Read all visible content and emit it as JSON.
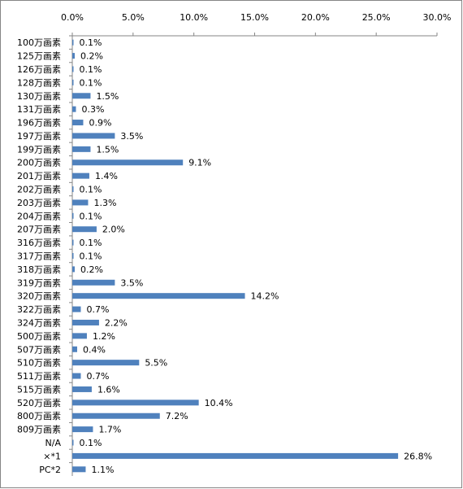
{
  "chart_data": {
    "type": "bar",
    "orientation": "horizontal",
    "color": "#4f81bd",
    "categories": [
      "100万画素",
      "125万画素",
      "126万画素",
      "128万画素",
      "130万画素",
      "131万画素",
      "196万画素",
      "197万画素",
      "199万画素",
      "200万画素",
      "201万画素",
      "202万画素",
      "203万画素",
      "204万画素",
      "207万画素",
      "316万画素",
      "317万画素",
      "318万画素",
      "319万画素",
      "320万画素",
      "322万画素",
      "324万画素",
      "500万画素",
      "507万画素",
      "510万画素",
      "511万画素",
      "515万画素",
      "520万画素",
      "800万画素",
      "809万画素",
      "N/A",
      "×*1",
      "PC*2"
    ],
    "values": [
      0.1,
      0.2,
      0.1,
      0.1,
      1.5,
      0.3,
      0.9,
      3.5,
      1.5,
      9.1,
      1.4,
      0.1,
      1.3,
      0.1,
      2.0,
      0.1,
      0.1,
      0.2,
      3.5,
      14.2,
      0.7,
      2.2,
      1.2,
      0.4,
      5.5,
      0.7,
      1.6,
      10.4,
      7.2,
      1.7,
      0.1,
      26.8,
      1.1
    ],
    "value_labels": [
      "0.1%",
      "0.2%",
      "0.1%",
      "0.1%",
      "1.5%",
      "0.3%",
      "0.9%",
      "3.5%",
      "1.5%",
      "9.1%",
      "1.4%",
      "0.1%",
      "1.3%",
      "0.1%",
      "2.0%",
      "0.1%",
      "0.1%",
      "0.2%",
      "3.5%",
      "14.2%",
      "0.7%",
      "2.2%",
      "1.2%",
      "0.4%",
      "5.5%",
      "0.7%",
      "1.6%",
      "10.4%",
      "7.2%",
      "1.7%",
      "0.1%",
      "26.8%",
      "1.1%"
    ],
    "xlim": [
      0,
      30
    ],
    "xticks": [
      {
        "value": 0,
        "label": "0.0%"
      },
      {
        "value": 5,
        "label": "5.0%"
      },
      {
        "value": 10,
        "label": "10.0%"
      },
      {
        "value": 15,
        "label": "15.0%"
      },
      {
        "value": 20,
        "label": "20.0%"
      },
      {
        "value": 25,
        "label": "25.0%"
      },
      {
        "value": 30,
        "label": "30.0%"
      }
    ]
  }
}
